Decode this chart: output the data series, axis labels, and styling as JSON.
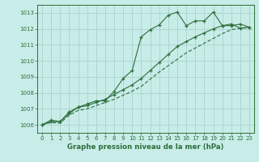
{
  "title": "Graphe pression niveau de la mer (hPa)",
  "bg_color": "#c8ece8",
  "grid_color": "#a8d4cc",
  "line_color": "#2d6e3a",
  "xlim": [
    -0.5,
    23.5
  ],
  "ylim": [
    1005.5,
    1013.5
  ],
  "xticks": [
    0,
    1,
    2,
    3,
    4,
    5,
    6,
    7,
    8,
    9,
    10,
    11,
    12,
    13,
    14,
    15,
    16,
    17,
    18,
    19,
    20,
    21,
    22,
    23
  ],
  "yticks": [
    1006,
    1007,
    1008,
    1009,
    1010,
    1011,
    1012,
    1013
  ],
  "series1_x": [
    0,
    1,
    2,
    3,
    4,
    5,
    6,
    7,
    8,
    9,
    10,
    11,
    12,
    13,
    14,
    15,
    16,
    17,
    18,
    19,
    20,
    21,
    22,
    23
  ],
  "series1_y": [
    1006.0,
    1006.3,
    1006.2,
    1006.8,
    1007.1,
    1007.3,
    1007.5,
    1007.5,
    1008.1,
    1008.9,
    1009.4,
    1011.5,
    1011.95,
    1012.25,
    1012.85,
    1013.05,
    1012.2,
    1012.5,
    1012.5,
    1013.05,
    1012.2,
    1012.3,
    1012.05,
    1012.1
  ],
  "series2_x": [
    0,
    1,
    2,
    3,
    4,
    5,
    6,
    7,
    8,
    9,
    10,
    11,
    12,
    13,
    14,
    15,
    16,
    17,
    18,
    19,
    20,
    21,
    22,
    23
  ],
  "series2_y": [
    1006.0,
    1006.2,
    1006.2,
    1006.7,
    1007.1,
    1007.2,
    1007.4,
    1007.6,
    1007.9,
    1008.2,
    1008.5,
    1008.9,
    1009.4,
    1009.9,
    1010.4,
    1010.9,
    1011.2,
    1011.5,
    1011.75,
    1012.0,
    1012.2,
    1012.2,
    1012.3,
    1012.1
  ],
  "series3_x": [
    0,
    1,
    2,
    3,
    4,
    5,
    6,
    7,
    8,
    9,
    10,
    11,
    12,
    13,
    14,
    15,
    16,
    17,
    18,
    19,
    20,
    21,
    22,
    23
  ],
  "series3_y": [
    1006.0,
    1006.15,
    1006.1,
    1006.6,
    1006.9,
    1007.0,
    1007.2,
    1007.4,
    1007.6,
    1007.85,
    1008.1,
    1008.4,
    1008.85,
    1009.3,
    1009.7,
    1010.1,
    1010.5,
    1010.8,
    1011.1,
    1011.4,
    1011.7,
    1011.95,
    1012.05,
    1012.05
  ],
  "tick_fontsize": 5.0,
  "xlabel_fontsize": 6.2
}
